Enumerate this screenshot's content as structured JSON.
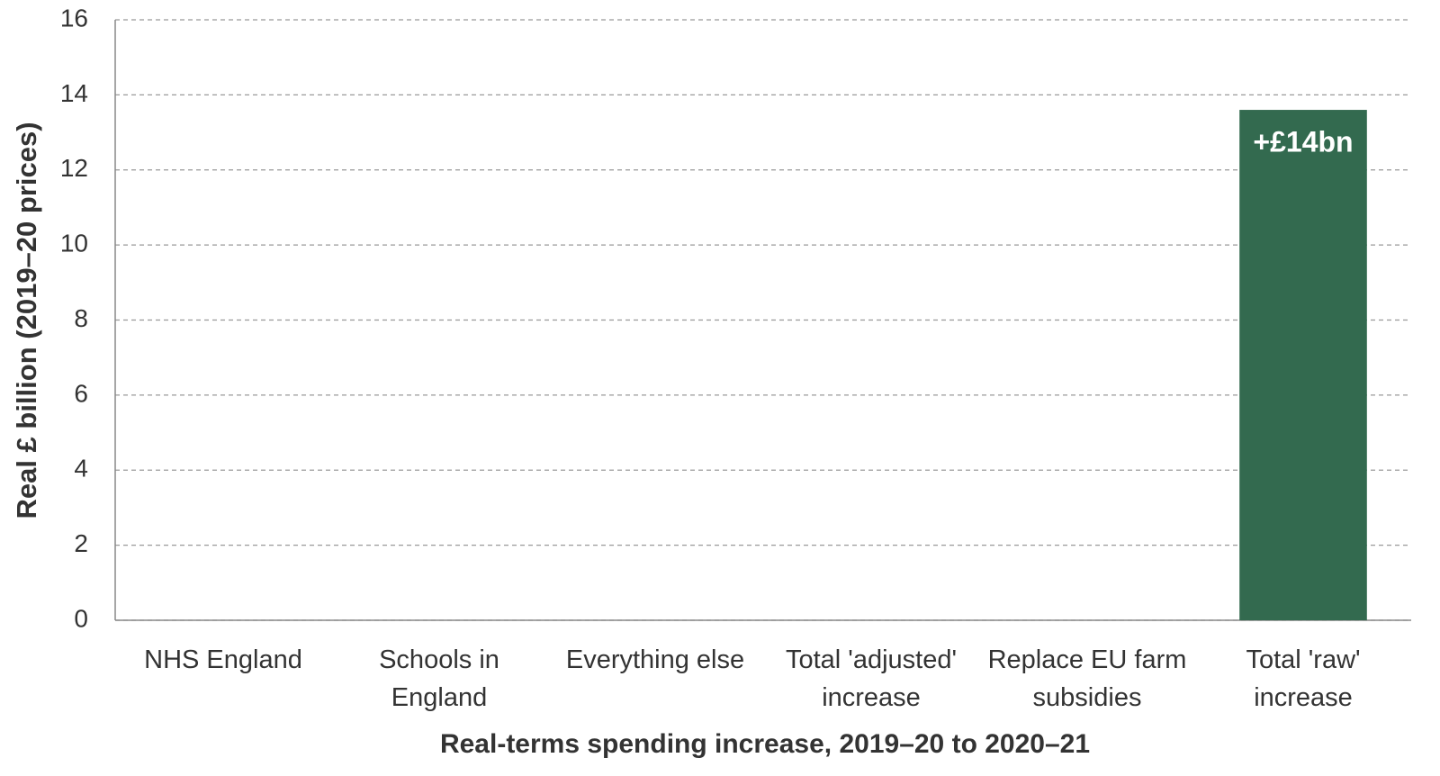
{
  "chart_data": {
    "type": "bar",
    "categories": [
      "NHS England",
      "Schools in England",
      "Everything else",
      "Total 'adjusted' increase",
      "Replace EU farm subsidies",
      "Total 'raw' increase"
    ],
    "values": [
      null,
      null,
      null,
      null,
      null,
      13.6
    ],
    "value_labels": [
      null,
      null,
      null,
      null,
      null,
      "+£14bn"
    ],
    "color": "#336a4f",
    "xlabel": "Real-terms spending increase, 2019–20 to 2020–21",
    "ylabel": "Real £ billion (2019–20 prices)",
    "ylim": [
      0,
      16
    ],
    "yticks": [
      0,
      2,
      4,
      6,
      8,
      10,
      12,
      14,
      16
    ],
    "grid": true
  }
}
